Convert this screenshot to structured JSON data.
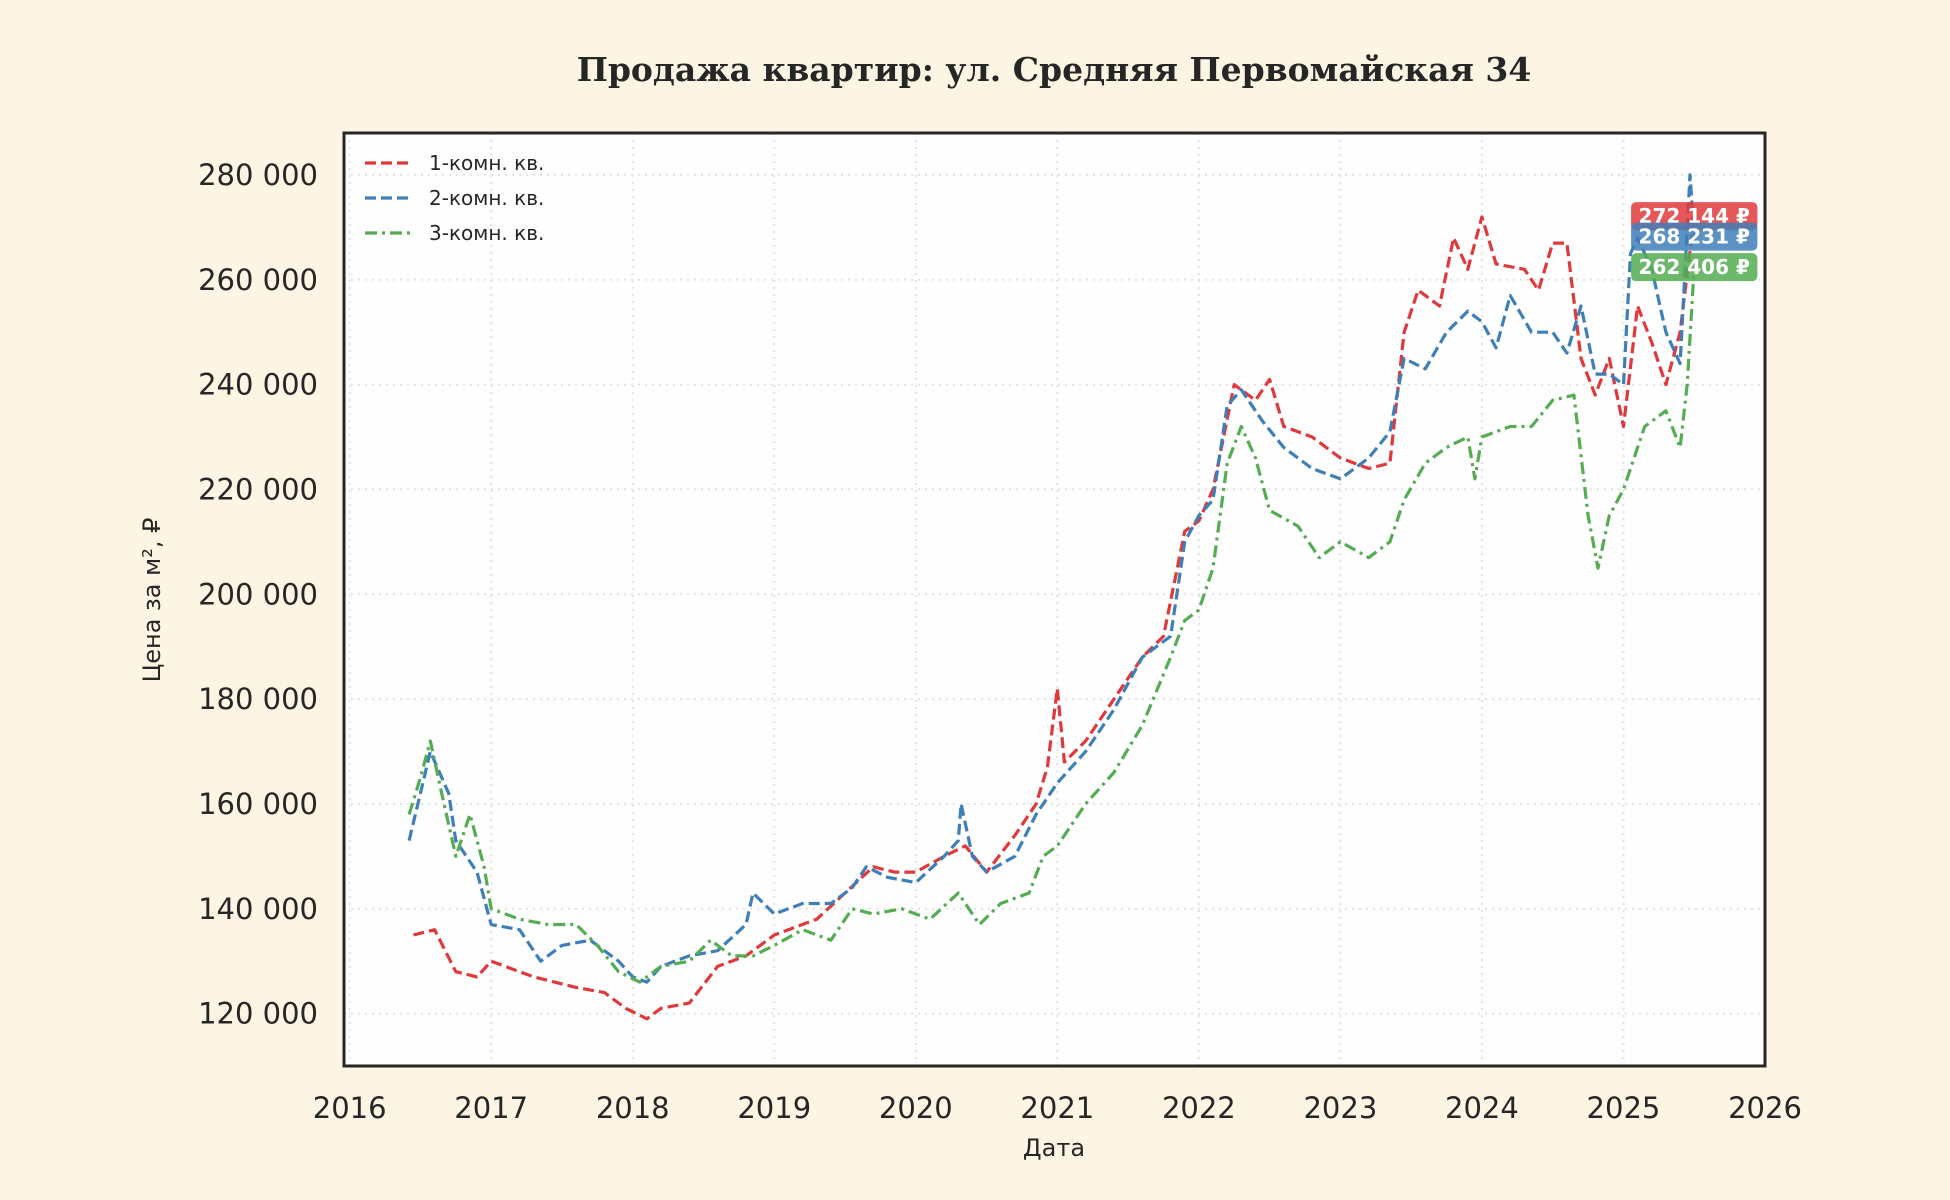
{
  "chart_data": {
    "type": "line",
    "title": "Продажа квартир: ул. Средняя Первомайская 34",
    "xlabel": "Дата",
    "ylabel": "Цена за м², ₽",
    "xlim": [
      2015.96,
      2026.0
    ],
    "ylim": [
      110000,
      288000
    ],
    "x_ticks": [
      2016,
      2017,
      2018,
      2019,
      2020,
      2021,
      2022,
      2023,
      2024,
      2025,
      2026
    ],
    "y_ticks": [
      120000,
      140000,
      160000,
      180000,
      200000,
      220000,
      240000,
      260000,
      280000
    ],
    "y_tick_labels": [
      "120 000",
      "140 000",
      "160 000",
      "180 000",
      "200 000",
      "220 000",
      "240 000",
      "260 000",
      "280 000"
    ],
    "grid": true,
    "legend_placement": "top-left",
    "series": [
      {
        "name": "1-комн. кв.",
        "color": "#e0393c",
        "style": "dashed",
        "last_label": "272 144 ₽",
        "x": [
          2016.45,
          2016.6,
          2016.75,
          2016.9,
          2017.0,
          2017.3,
          2017.6,
          2017.8,
          2017.95,
          2018.1,
          2018.2,
          2018.4,
          2018.6,
          2018.8,
          2019.0,
          2019.3,
          2019.5,
          2019.7,
          2019.85,
          2020.0,
          2020.2,
          2020.35,
          2020.5,
          2020.7,
          2020.85,
          2020.93,
          2021.0,
          2021.05,
          2021.2,
          2021.4,
          2021.6,
          2021.75,
          2021.9,
          2022.0,
          2022.1,
          2022.25,
          2022.4,
          2022.5,
          2022.6,
          2022.8,
          2023.0,
          2023.2,
          2023.35,
          2023.45,
          2023.55,
          2023.7,
          2023.8,
          2023.9,
          2024.0,
          2024.1,
          2024.3,
          2024.4,
          2024.5,
          2024.6,
          2024.7,
          2024.8,
          2024.9,
          2025.0,
          2025.1,
          2025.2,
          2025.3,
          2025.4,
          2025.5
        ],
        "y": [
          135000,
          136000,
          128000,
          127000,
          130000,
          127000,
          125000,
          124000,
          121000,
          119000,
          121000,
          122000,
          129000,
          131000,
          135000,
          138000,
          143000,
          148000,
          147000,
          147000,
          150000,
          152000,
          147000,
          154000,
          160000,
          167000,
          182000,
          168000,
          172000,
          180000,
          188000,
          192000,
          212000,
          214000,
          220000,
          240000,
          237000,
          241000,
          232000,
          230000,
          226000,
          224000,
          225000,
          250000,
          258000,
          255000,
          268000,
          262000,
          272000,
          263000,
          262000,
          258000,
          267000,
          267000,
          245000,
          238000,
          245000,
          232000,
          255000,
          248000,
          240000,
          250000,
          272144
        ]
      },
      {
        "name": "2-комн. кв.",
        "color": "#3f7fb8",
        "style": "dashed",
        "last_label": "268 231 ₽",
        "x": [
          2016.42,
          2016.5,
          2016.57,
          2016.7,
          2016.75,
          2016.9,
          2017.0,
          2017.2,
          2017.35,
          2017.5,
          2017.7,
          2017.9,
          2018.0,
          2018.1,
          2018.2,
          2018.4,
          2018.6,
          2018.8,
          2018.85,
          2019.0,
          2019.2,
          2019.4,
          2019.55,
          2019.65,
          2019.8,
          2020.0,
          2020.2,
          2020.3,
          2020.32,
          2020.4,
          2020.5,
          2020.7,
          2020.85,
          2021.0,
          2021.2,
          2021.4,
          2021.6,
          2021.8,
          2021.9,
          2022.0,
          2022.1,
          2022.2,
          2022.3,
          2022.45,
          2022.6,
          2022.8,
          2023.0,
          2023.2,
          2023.35,
          2023.45,
          2023.6,
          2023.75,
          2023.9,
          2024.0,
          2024.1,
          2024.2,
          2024.35,
          2024.5,
          2024.6,
          2024.7,
          2024.8,
          2024.9,
          2025.0,
          2025.05,
          2025.1,
          2025.2,
          2025.3,
          2025.4,
          2025.47,
          2025.5
        ],
        "y": [
          153000,
          162000,
          170000,
          162000,
          153000,
          147000,
          137000,
          136000,
          130000,
          133000,
          134000,
          130000,
          127000,
          126000,
          129000,
          131000,
          132000,
          137000,
          143000,
          139000,
          141000,
          141000,
          144000,
          148000,
          146000,
          145000,
          150000,
          153000,
          160000,
          150000,
          147000,
          150000,
          158000,
          164000,
          170000,
          178000,
          188000,
          192000,
          210000,
          215000,
          218000,
          236000,
          239000,
          233000,
          228000,
          224000,
          222000,
          226000,
          231000,
          245000,
          243000,
          250000,
          254000,
          252000,
          247000,
          257000,
          250000,
          250000,
          246000,
          255000,
          242000,
          242000,
          240000,
          265000,
          268000,
          262000,
          250000,
          244000,
          280000,
          268231
        ]
      },
      {
        "name": "3-комн. кв.",
        "color": "#55ac52",
        "style": "dashdot",
        "last_label": "262 406 ₽",
        "x": [
          2016.42,
          2016.5,
          2016.57,
          2016.65,
          2016.75,
          2016.85,
          2016.95,
          2017.0,
          2017.2,
          2017.4,
          2017.6,
          2017.75,
          2017.9,
          2018.05,
          2018.2,
          2018.4,
          2018.55,
          2018.7,
          2018.85,
          2019.0,
          2019.2,
          2019.4,
          2019.55,
          2019.7,
          2019.9,
          2020.1,
          2020.3,
          2020.45,
          2020.6,
          2020.8,
          2020.9,
          2021.0,
          2021.2,
          2021.4,
          2021.6,
          2021.8,
          2021.9,
          2022.0,
          2022.1,
          2022.2,
          2022.3,
          2022.4,
          2022.5,
          2022.7,
          2022.85,
          2023.0,
          2023.2,
          2023.35,
          2023.45,
          2023.6,
          2023.75,
          2023.9,
          2023.95,
          2024.0,
          2024.2,
          2024.35,
          2024.5,
          2024.65,
          2024.75,
          2024.82,
          2024.9,
          2025.0,
          2025.15,
          2025.3,
          2025.4,
          2025.45,
          2025.5
        ],
        "y": [
          158000,
          165000,
          172000,
          162000,
          150000,
          158000,
          148000,
          140000,
          138000,
          137000,
          137000,
          133000,
          128000,
          126000,
          129000,
          130000,
          134000,
          131000,
          131000,
          133000,
          136000,
          134000,
          140000,
          139000,
          140000,
          138000,
          143000,
          137000,
          141000,
          143000,
          150000,
          152000,
          160000,
          166000,
          175000,
          188000,
          195000,
          197000,
          205000,
          225000,
          232000,
          226000,
          216000,
          213000,
          207000,
          210000,
          207000,
          210000,
          218000,
          225000,
          228000,
          230000,
          222000,
          230000,
          232000,
          232000,
          237000,
          238000,
          215000,
          205000,
          215000,
          220000,
          232000,
          235000,
          228000,
          240000,
          262406
        ]
      }
    ]
  }
}
